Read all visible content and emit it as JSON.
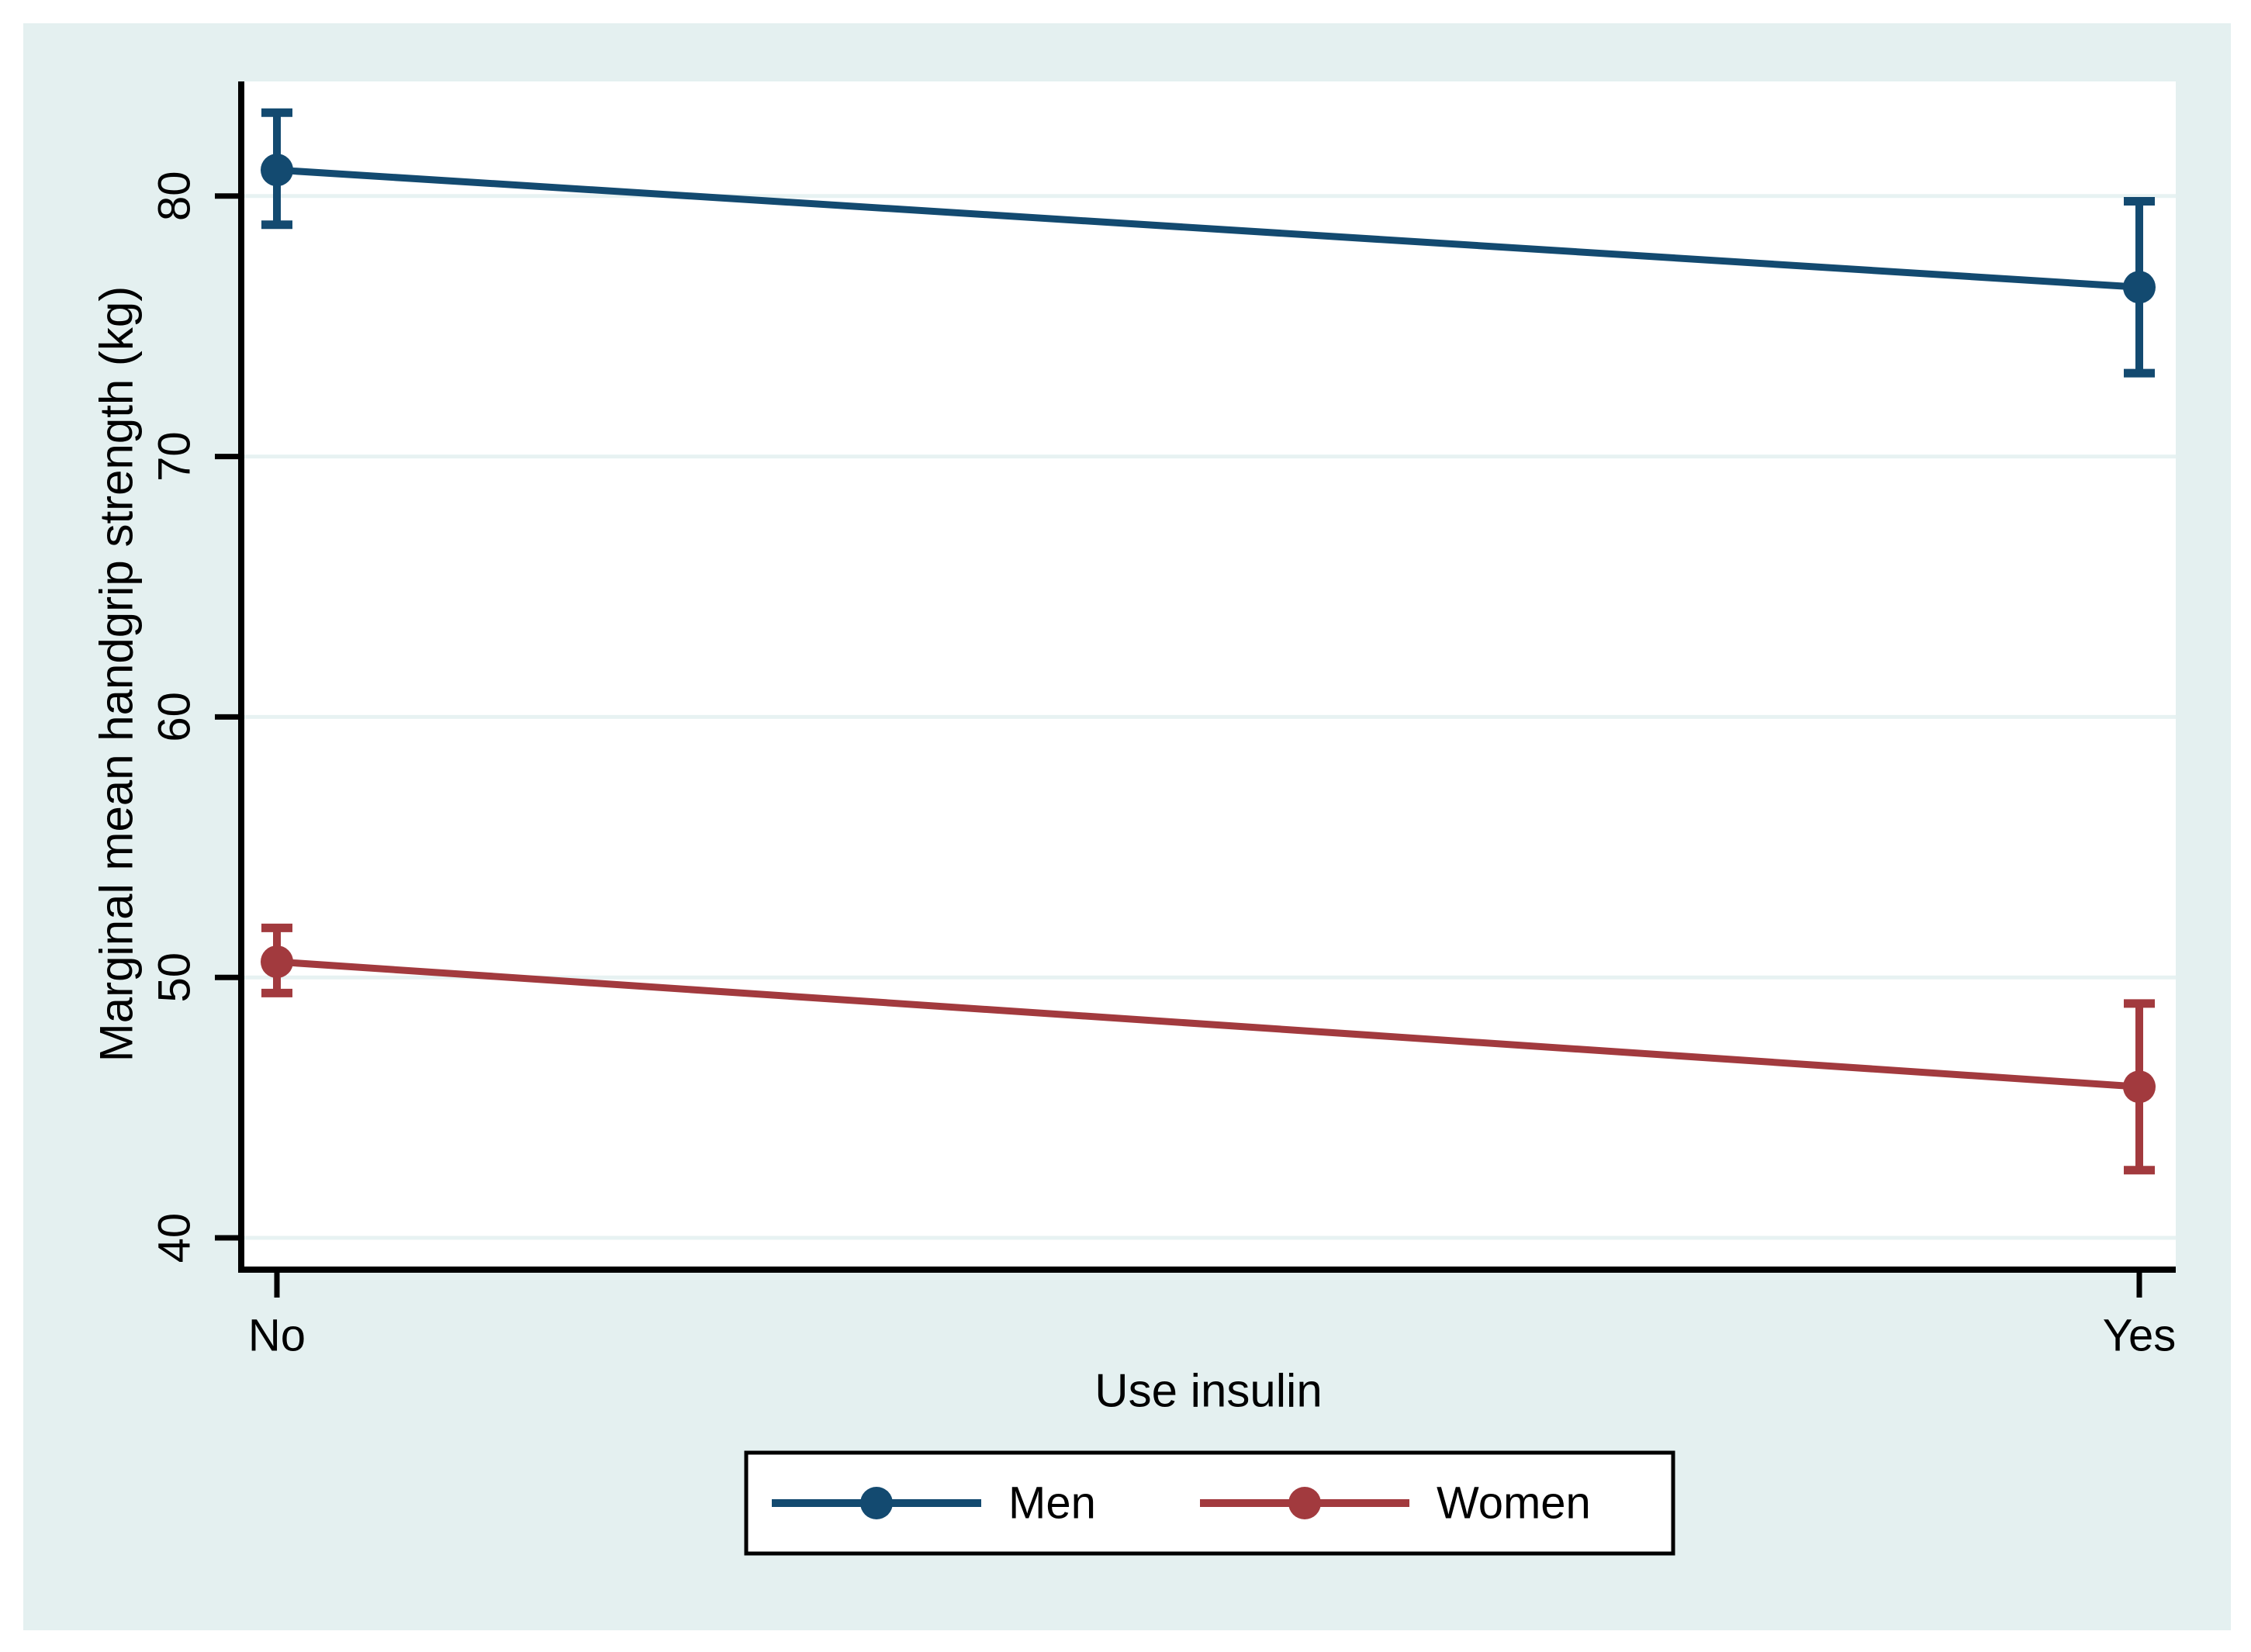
{
  "figure": {
    "background_color": "#e4f0f0",
    "plot_background_color": "#ffffff",
    "gridline_color": "#e7f2f2",
    "axis_color": "#000000",
    "text_color": "#000000",
    "legend_border_color": "#000000",
    "legend_background_color": "#ffffff"
  },
  "chart_data": {
    "type": "line",
    "title": "",
    "xlabel": "Use insulin",
    "ylabel": "Marginal mean handgrip strength (kg)",
    "categories": [
      "No",
      "Yes"
    ],
    "y_ticks": [
      40,
      50,
      60,
      70,
      80
    ],
    "ylim": [
      38.9,
      84.4
    ],
    "grid": true,
    "error_bars": true,
    "legend_position": "bottom-center",
    "series": [
      {
        "name": "Men",
        "color": "#134a70",
        "means": [
          81.0,
          76.5
        ],
        "ci_low": [
          78.9,
          73.2
        ],
        "ci_high": [
          83.2,
          79.8
        ]
      },
      {
        "name": "Women",
        "color": "#a23a3e",
        "means": [
          50.6,
          45.8
        ],
        "ci_low": [
          49.4,
          42.6
        ],
        "ci_high": [
          51.9,
          49.0
        ]
      }
    ]
  }
}
